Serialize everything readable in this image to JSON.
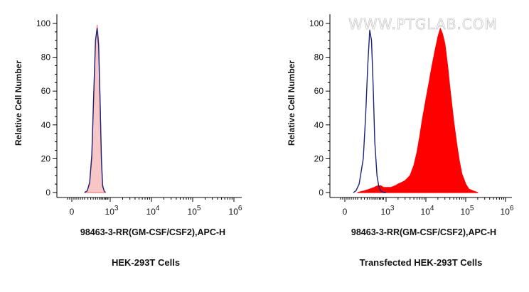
{
  "chart_data": [
    {
      "type": "area",
      "ylabel": "Relative Cell Number",
      "xlabel": "98463-3-RR(GM-CSF/CSF2),APC-H",
      "caption": "HEK-293T Cells",
      "watermark": "",
      "xscale": "biexponential",
      "xlim": [
        -100,
        1000000
      ],
      "ylim": [
        0,
        100
      ],
      "yticks": [
        0,
        20,
        40,
        60,
        80,
        100
      ],
      "xticks": [
        {
          "value": 0,
          "base": "0",
          "exp": ""
        },
        {
          "value": 1000,
          "base": "10",
          "exp": "3"
        },
        {
          "value": 10000,
          "base": "10",
          "exp": "4"
        },
        {
          "value": 100000,
          "base": "10",
          "exp": "5"
        },
        {
          "value": 1000000,
          "base": "10",
          "exp": "6"
        }
      ],
      "series": [
        {
          "role": "filled",
          "color": "#f08080",
          "fill": "#f7c6c6",
          "x": [
            300,
            340,
            380,
            420,
            460,
            500,
            540,
            580,
            620,
            660,
            700,
            750,
            800
          ],
          "y": [
            0,
            1,
            5,
            20,
            55,
            88,
            99,
            90,
            58,
            22,
            5,
            1,
            0
          ]
        },
        {
          "role": "outline",
          "color": "#1a237e",
          "fill": "none",
          "x": [
            300,
            340,
            380,
            420,
            460,
            500,
            540,
            580,
            620,
            660,
            700,
            750,
            800
          ],
          "y": [
            0,
            1,
            6,
            22,
            58,
            90,
            97,
            87,
            55,
            20,
            4,
            1,
            0
          ]
        }
      ]
    },
    {
      "type": "area",
      "ylabel": "Relative Cell Number",
      "xlabel": "98463-3-RR(GM-CSF/CSF2),APC-H",
      "caption": "Transfected HEK-293T Cells",
      "watermark": "WWW.PTGLAB.COM",
      "xscale": "biexponential",
      "xlim": [
        -100,
        1000000
      ],
      "ylim": [
        0,
        100
      ],
      "yticks": [
        0,
        20,
        40,
        60,
        80,
        100
      ],
      "xticks": [
        {
          "value": 0,
          "base": "0",
          "exp": ""
        },
        {
          "value": 1000,
          "base": "10",
          "exp": "3"
        },
        {
          "value": 10000,
          "base": "10",
          "exp": "4"
        },
        {
          "value": 100000,
          "base": "10",
          "exp": "5"
        },
        {
          "value": 1000000,
          "base": "10",
          "exp": "6"
        }
      ],
      "series": [
        {
          "role": "filled",
          "color": "#ff0000",
          "fill": "#ff0000",
          "x": [
            300,
            400,
            500,
            600,
            700,
            800,
            900,
            1000,
            1300,
            1700,
            2000,
            2500,
            3000,
            4000,
            5000,
            6000,
            7000,
            8000,
            10000,
            12000,
            14000,
            17000,
            20000,
            23000,
            26000,
            30000,
            35000,
            40000,
            50000,
            60000,
            70000,
            80000,
            100000,
            120000,
            150000,
            200000
          ],
          "y": [
            0,
            1,
            2,
            3,
            4,
            4,
            3,
            3,
            3,
            4,
            5,
            6,
            7,
            10,
            16,
            24,
            33,
            42,
            55,
            65,
            74,
            84,
            92,
            97,
            94,
            88,
            75,
            62,
            42,
            28,
            18,
            11,
            5,
            2,
            1,
            0
          ]
        },
        {
          "role": "outline",
          "color": "#1a237e",
          "fill": "none",
          "x": [
            200,
            260,
            320,
            380,
            420,
            460,
            500,
            540,
            580,
            620,
            680,
            740,
            800,
            900,
            1000
          ],
          "y": [
            0,
            1,
            5,
            20,
            45,
            75,
            96,
            90,
            62,
            30,
            10,
            3,
            1,
            0,
            0
          ]
        }
      ]
    }
  ]
}
